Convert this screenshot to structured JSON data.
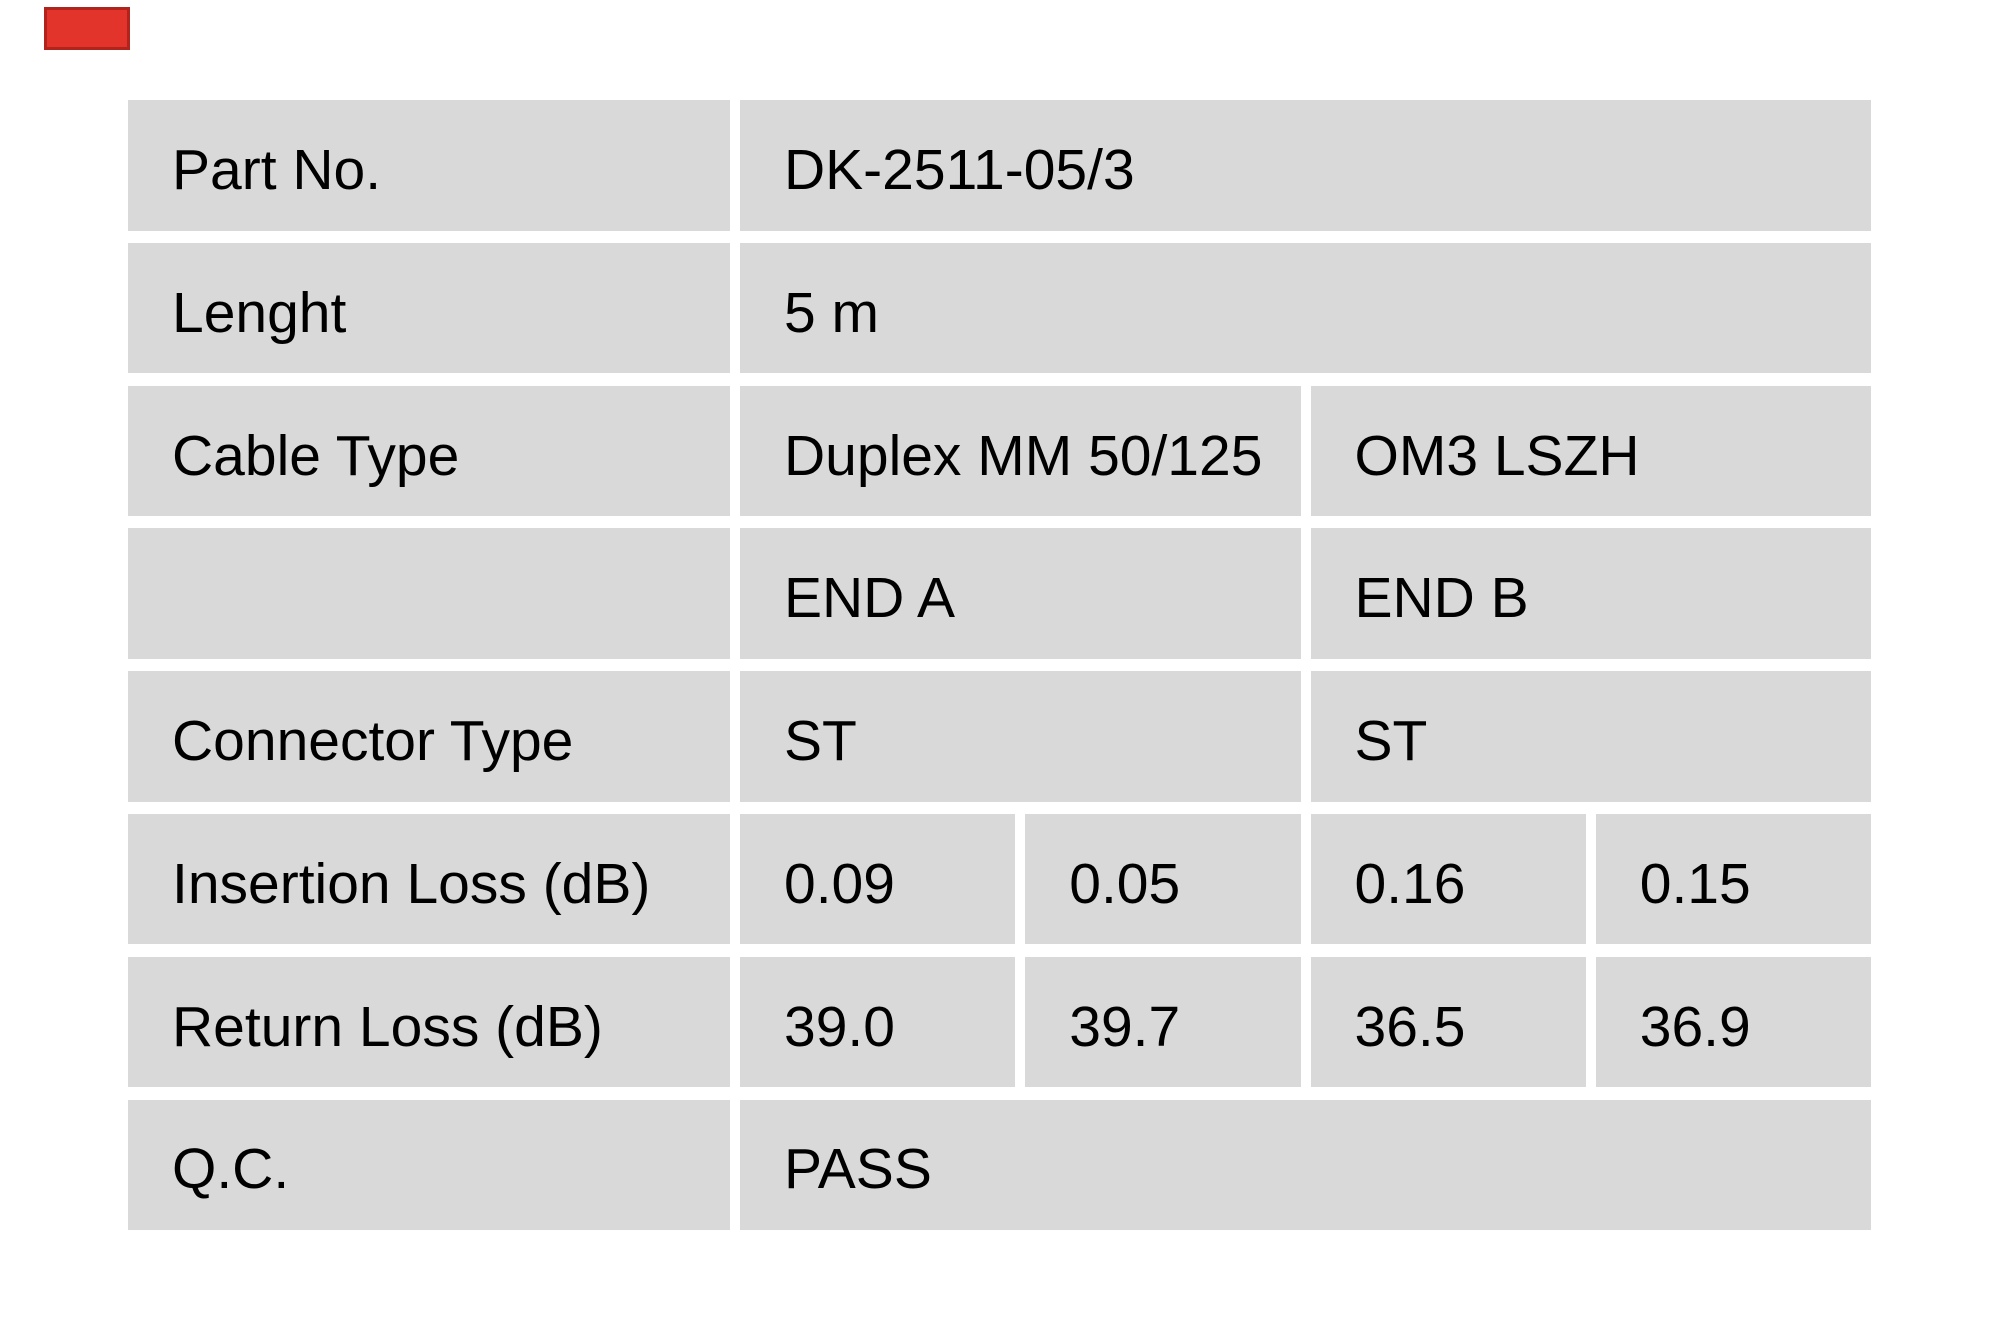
{
  "page": {
    "background_color": "#ffffff",
    "cell_background_color": "#d9d9d9",
    "text_color": "#000000",
    "logo_fragment_color": "#e2342b",
    "logo_fragment_border_color": "#b0241d"
  },
  "table": {
    "rows": {
      "part_no": {
        "label": "Part No.",
        "value": "DK-2511-05/3"
      },
      "length": {
        "label": "Lenght",
        "value": "5 m"
      },
      "cable_type": {
        "label": "Cable Type",
        "end_a": "Duplex MM 50/125",
        "end_b": "OM3 LSZH"
      },
      "ends_header": {
        "label": "",
        "end_a": "END A",
        "end_b": "END B"
      },
      "connector_type": {
        "label": "Connector Type",
        "end_a": "ST",
        "end_b": "ST"
      },
      "insertion_loss": {
        "label": "Insertion Loss (dB)",
        "a1": "0.09",
        "a2": "0.05",
        "b1": "0.16",
        "b2": "0.15"
      },
      "return_loss": {
        "label": "Return Loss (dB)",
        "a1": "39.0",
        "a2": "39.7",
        "b1": "36.5",
        "b2": "36.9"
      },
      "qc": {
        "label": "Q.C.",
        "value": "PASS"
      }
    }
  }
}
